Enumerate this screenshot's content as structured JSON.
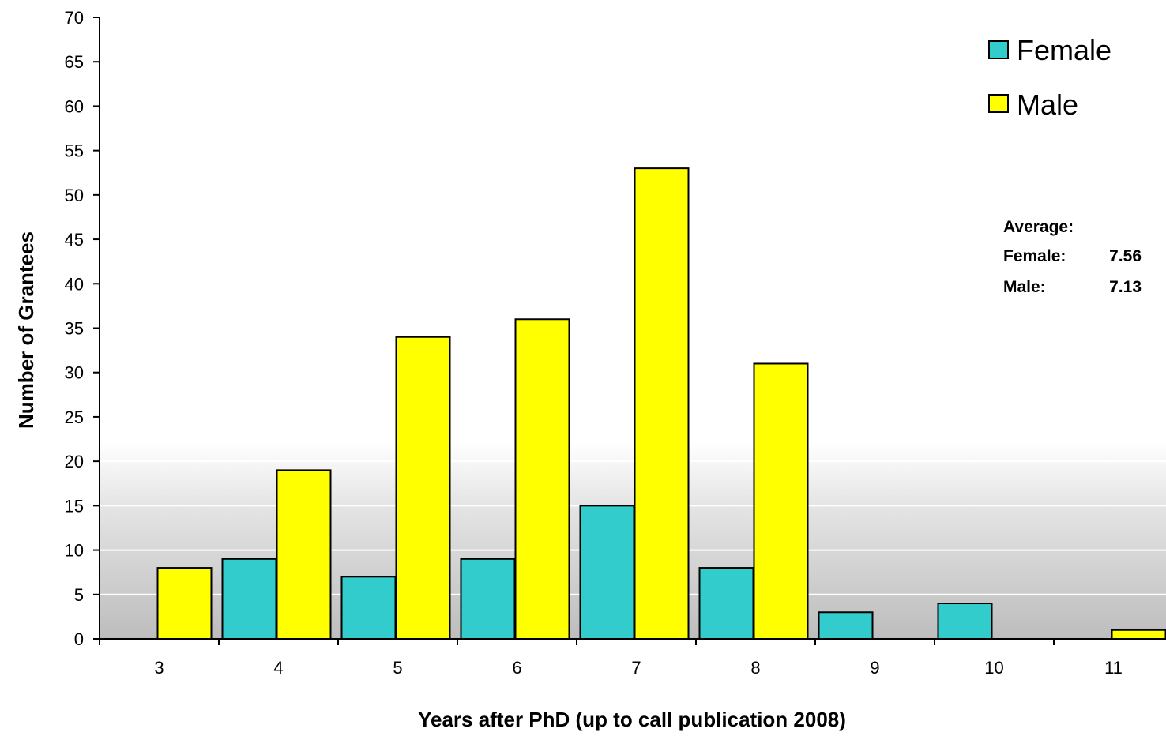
{
  "chart_data": {
    "type": "bar",
    "xlabel": "Years after PhD (up to call publication 2008)",
    "ylabel": "Number of Grantees",
    "categories": [
      "3",
      "4",
      "5",
      "6",
      "7",
      "8",
      "9",
      "10",
      "11"
    ],
    "series": [
      {
        "name": "Female",
        "color": "#33CCCC",
        "values": [
          0,
          9,
          7,
          9,
          15,
          8,
          3,
          4,
          0
        ]
      },
      {
        "name": "Male",
        "color": "#FFFF00",
        "values": [
          8,
          19,
          34,
          36,
          53,
          31,
          0,
          0,
          1
        ]
      }
    ],
    "ylim": [
      0,
      70
    ],
    "yticks": [
      "0",
      "5",
      "10",
      "15",
      "20",
      "25",
      "30",
      "35",
      "40",
      "45",
      "50",
      "55",
      "60",
      "65",
      "70"
    ],
    "legend_position": "top-right",
    "grid": "horizontal white lines over gray shaded lower region",
    "annotation": {
      "heading": "Average:",
      "female_label": "Female:",
      "female_value": "7.56",
      "male_label": "Male:",
      "male_value": "7.13"
    }
  }
}
